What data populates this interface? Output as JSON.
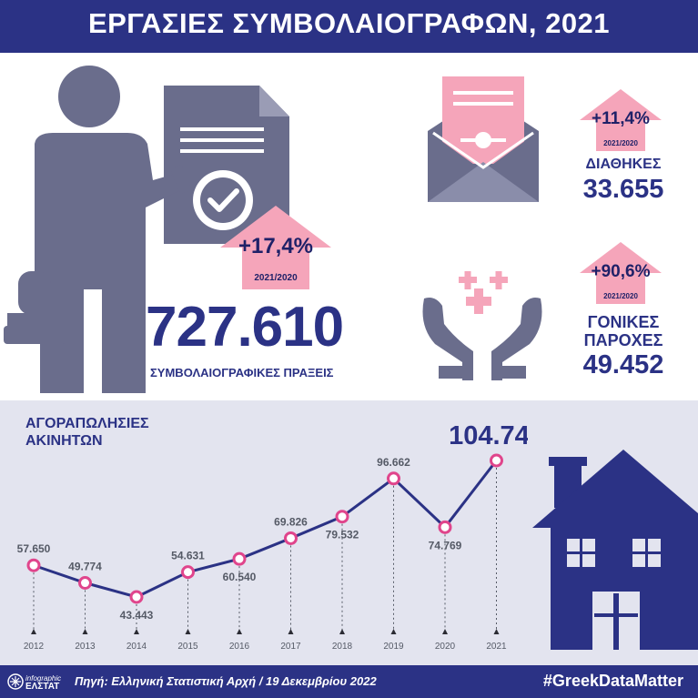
{
  "header": {
    "title": "ΕΡΓΑΣΙΕΣ ΣΥΜΒΟΛΑΙΟΓΡΑΦΩΝ, 2021"
  },
  "main_stat": {
    "value": "727.610",
    "label": "ΣΥΜΒΟΛΑΙΟΓΡΑΦΙΚΕΣ ΠΡΑΞΕΙΣ",
    "change": "+17,4%",
    "period": "2021/2020"
  },
  "wills": {
    "label": "ΔΙΑΘΗΚΕΣ",
    "value": "33.655",
    "change": "+11,4%",
    "period": "2021/2020"
  },
  "parental": {
    "label_line1": "ΓΟΝΙΚΕΣ",
    "label_line2": "ΠΑΡΟΧΕΣ",
    "value": "49.452",
    "change": "+90,6%",
    "period": "2021/2020"
  },
  "chart_title_line1": "ΑΓΟΡΑΠΩΛΗΣΙΕΣ",
  "chart_title_line2": "ΑΚΙΝΗΤΩΝ",
  "chart_data": {
    "type": "line",
    "title": "ΑΓΟΡΑΠΩΛΗΣΙΕΣ ΑΚΙΝΗΤΩΝ",
    "categories": [
      "2012",
      "2013",
      "2014",
      "2015",
      "2016",
      "2017",
      "2018",
      "2019",
      "2020",
      "2021"
    ],
    "values": [
      57650,
      49774,
      43443,
      54631,
      60540,
      69826,
      79532,
      96662,
      74769,
      104746
    ],
    "value_labels": [
      "57.650",
      "49.774",
      "43.443",
      "54.631",
      "60.540",
      "69.826",
      "79.532",
      "96.662",
      "74.769",
      "104.746"
    ],
    "line_color": "#2b3285",
    "marker_color": "#e0458c",
    "grid": false
  },
  "footer": {
    "logo_top": "infographic",
    "logo_bottom": "ΕΛΣΤΑΤ",
    "source": "Πηγή: Ελληνική Στατιστική Αρχή  / 19 Δεκεμβρίου 2022",
    "hashtag": "#GreekDataMatter"
  },
  "colors": {
    "navy": "#2b3285",
    "pink": "#f5a5ba",
    "gray_icon": "#6a6d8c",
    "bottom_bg": "#e3e4ef"
  }
}
